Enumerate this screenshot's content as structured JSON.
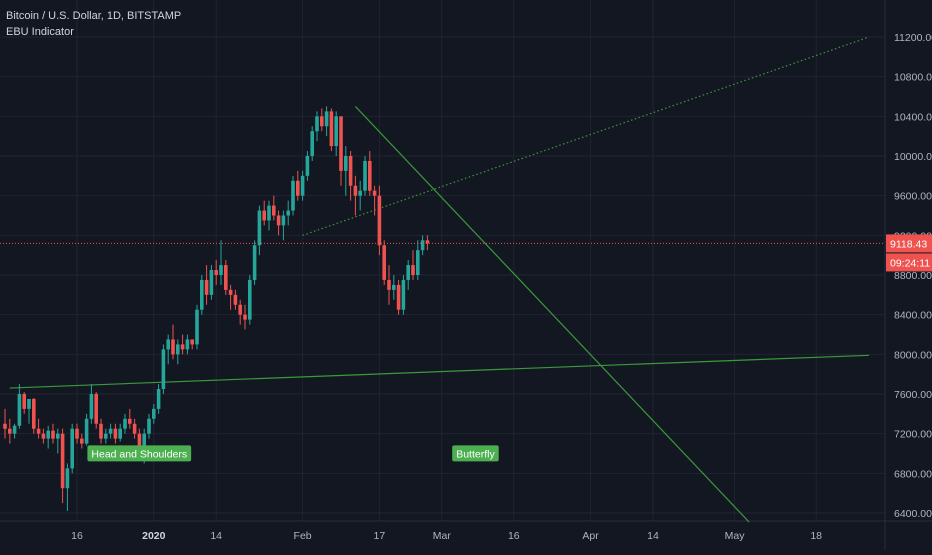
{
  "header": {
    "symbol": "Bitcoin / U.S. Dollar, 1D, BITSTAMP",
    "indicator": "EBU Indicator"
  },
  "colors": {
    "background": "#131722",
    "grid": "#1f2430",
    "axis_text": "#b2b5be",
    "up": "#26a69a",
    "down": "#ef5350",
    "trendline": "#3a9a3a",
    "label_bg": "#4caf50",
    "price_line": "#ef5350"
  },
  "chart_data": {
    "type": "candlestick",
    "title": "Bitcoin / U.S. Dollar, 1D, BITSTAMP",
    "ylim": [
      6300,
      11500
    ],
    "y_ticks": [
      6400,
      6800,
      7200,
      7600,
      8000,
      8400,
      8800,
      9200,
      9600,
      10000,
      10400,
      10800,
      11200
    ],
    "y_tick_labels": [
      "6400.00",
      "6800.00",
      "7200.00",
      "7600.00",
      "8000.00",
      "8400.00",
      "8800.00",
      "9200.00",
      "9600.00",
      "10000.00",
      "10400.00",
      "10800.00",
      "11200.00"
    ],
    "x_labels": [
      {
        "label": "16",
        "day": 15
      },
      {
        "label": "2020",
        "day": 31,
        "bold": true
      },
      {
        "label": "14",
        "day": 44
      },
      {
        "label": "Feb",
        "day": 62
      },
      {
        "label": "17",
        "day": 78
      },
      {
        "label": "Mar",
        "day": 91
      },
      {
        "label": "16",
        "day": 106
      },
      {
        "label": "Apr",
        "day": 122
      },
      {
        "label": "14",
        "day": 135
      },
      {
        "label": "May",
        "day": 152
      },
      {
        "label": "18",
        "day": 169
      }
    ],
    "current_price": 9118.43,
    "current_price_label": "9118.43",
    "countdown_label": "09:24:11",
    "candles": [
      [
        7300,
        7450,
        7150,
        7250
      ],
      [
        7250,
        7350,
        7100,
        7200
      ],
      [
        7200,
        7300,
        7150,
        7280
      ],
      [
        7280,
        7700,
        7250,
        7600
      ],
      [
        7600,
        7620,
        7400,
        7450
      ],
      [
        7450,
        7550,
        7300,
        7550
      ],
      [
        7550,
        7560,
        7200,
        7250
      ],
      [
        7250,
        7350,
        7150,
        7200
      ],
      [
        7200,
        7250,
        7100,
        7150
      ],
      [
        7150,
        7280,
        7050,
        7230
      ],
      [
        7230,
        7300,
        7100,
        7150
      ],
      [
        7150,
        7250,
        7000,
        7200
      ],
      [
        7200,
        7250,
        6500,
        6650
      ],
      [
        6650,
        6900,
        6420,
        6850
      ],
      [
        6850,
        7300,
        6800,
        7250
      ],
      [
        7250,
        7300,
        7100,
        7150
      ],
      [
        7150,
        7200,
        7050,
        7100
      ],
      [
        7100,
        7400,
        7080,
        7350
      ],
      [
        7350,
        7700,
        7300,
        7600
      ],
      [
        7600,
        7620,
        7250,
        7300
      ],
      [
        7300,
        7350,
        7100,
        7150
      ],
      [
        7150,
        7250,
        7100,
        7200
      ],
      [
        7200,
        7300,
        7150,
        7250
      ],
      [
        7250,
        7300,
        7100,
        7150
      ],
      [
        7150,
        7300,
        7120,
        7250
      ],
      [
        7250,
        7400,
        7200,
        7350
      ],
      [
        7350,
        7450,
        7250,
        7300
      ],
      [
        7300,
        7350,
        7150,
        7200
      ],
      [
        7200,
        7250,
        6950,
        7000
      ],
      [
        7000,
        7250,
        6900,
        7200
      ],
      [
        7200,
        7400,
        7150,
        7350
      ],
      [
        7350,
        7500,
        7300,
        7450
      ],
      [
        7450,
        7700,
        7400,
        7650
      ],
      [
        7650,
        8100,
        7600,
        8050
      ],
      [
        8050,
        8200,
        7900,
        8150
      ],
      [
        8150,
        8300,
        7950,
        8000
      ],
      [
        8000,
        8150,
        7900,
        8100
      ],
      [
        8100,
        8200,
        8000,
        8050
      ],
      [
        8050,
        8200,
        8000,
        8150
      ],
      [
        8150,
        8150,
        8050,
        8100
      ],
      [
        8100,
        8500,
        8050,
        8450
      ],
      [
        8450,
        8800,
        8400,
        8750
      ],
      [
        8750,
        8900,
        8500,
        8600
      ],
      [
        8600,
        8900,
        8550,
        8850
      ],
      [
        8850,
        8950,
        8700,
        8800
      ],
      [
        8800,
        9150,
        8700,
        8900
      ],
      [
        8900,
        8950,
        8600,
        8650
      ],
      [
        8650,
        8700,
        8450,
        8600
      ],
      [
        8600,
        8650,
        8450,
        8500
      ],
      [
        8500,
        8550,
        8300,
        8400
      ],
      [
        8400,
        8500,
        8250,
        8350
      ],
      [
        8350,
        8800,
        8300,
        8750
      ],
      [
        8750,
        9150,
        8700,
        9100
      ],
      [
        9100,
        9500,
        9000,
        9450
      ],
      [
        9450,
        9550,
        9300,
        9350
      ],
      [
        9350,
        9550,
        9250,
        9500
      ],
      [
        9500,
        9600,
        9350,
        9400
      ],
      [
        9400,
        9450,
        9200,
        9300
      ],
      [
        9300,
        9450,
        9150,
        9400
      ],
      [
        9400,
        9550,
        9300,
        9450
      ],
      [
        9450,
        9800,
        9400,
        9750
      ],
      [
        9750,
        9850,
        9550,
        9600
      ],
      [
        9600,
        9850,
        9550,
        9800
      ],
      [
        9800,
        10050,
        9750,
        10000
      ],
      [
        10000,
        10300,
        9950,
        10250
      ],
      [
        10250,
        10450,
        10150,
        10400
      ],
      [
        10400,
        10480,
        10250,
        10300
      ],
      [
        10300,
        10500,
        10200,
        10450
      ],
      [
        10450,
        10480,
        10050,
        10100
      ],
      [
        10100,
        10450,
        10000,
        10400
      ],
      [
        10400,
        10400,
        9700,
        9850
      ],
      [
        9850,
        10100,
        9600,
        10000
      ],
      [
        10000,
        10050,
        9550,
        9700
      ],
      [
        9700,
        9800,
        9400,
        9600
      ],
      [
        9600,
        9750,
        9450,
        9650
      ],
      [
        9650,
        10000,
        9600,
        9950
      ],
      [
        9950,
        10050,
        9600,
        9650
      ],
      [
        9650,
        9700,
        9400,
        9600
      ],
      [
        9600,
        9700,
        9000,
        9100
      ],
      [
        9100,
        9150,
        8700,
        8750
      ],
      [
        8750,
        8900,
        8500,
        8650
      ],
      [
        8650,
        8800,
        8550,
        8700
      ],
      [
        8700,
        8750,
        8400,
        8450
      ],
      [
        8450,
        8800,
        8400,
        8750
      ],
      [
        8750,
        8950,
        8650,
        8900
      ],
      [
        8900,
        9050,
        8750,
        8800
      ],
      [
        8800,
        9150,
        8750,
        9050
      ],
      [
        9050,
        9200,
        9000,
        9150
      ],
      [
        9150,
        9200,
        9050,
        9118
      ]
    ],
    "trendlines": [
      {
        "name": "neckline",
        "style": "solid",
        "start": [
          1,
          7660
        ],
        "end": [
          180,
          7990
        ]
      },
      {
        "name": "descending",
        "style": "solid",
        "start": [
          73,
          10500
        ],
        "end": [
          155,
          6310
        ]
      },
      {
        "name": "ascending",
        "style": "dotted",
        "start": [
          62,
          9200
        ],
        "end": [
          180,
          11200
        ]
      }
    ],
    "annotations": [
      {
        "text": "Head and Shoulders",
        "day": 18,
        "y": 6900
      },
      {
        "text": "Butterfly",
        "day": 94,
        "y": 6900
      }
    ]
  }
}
